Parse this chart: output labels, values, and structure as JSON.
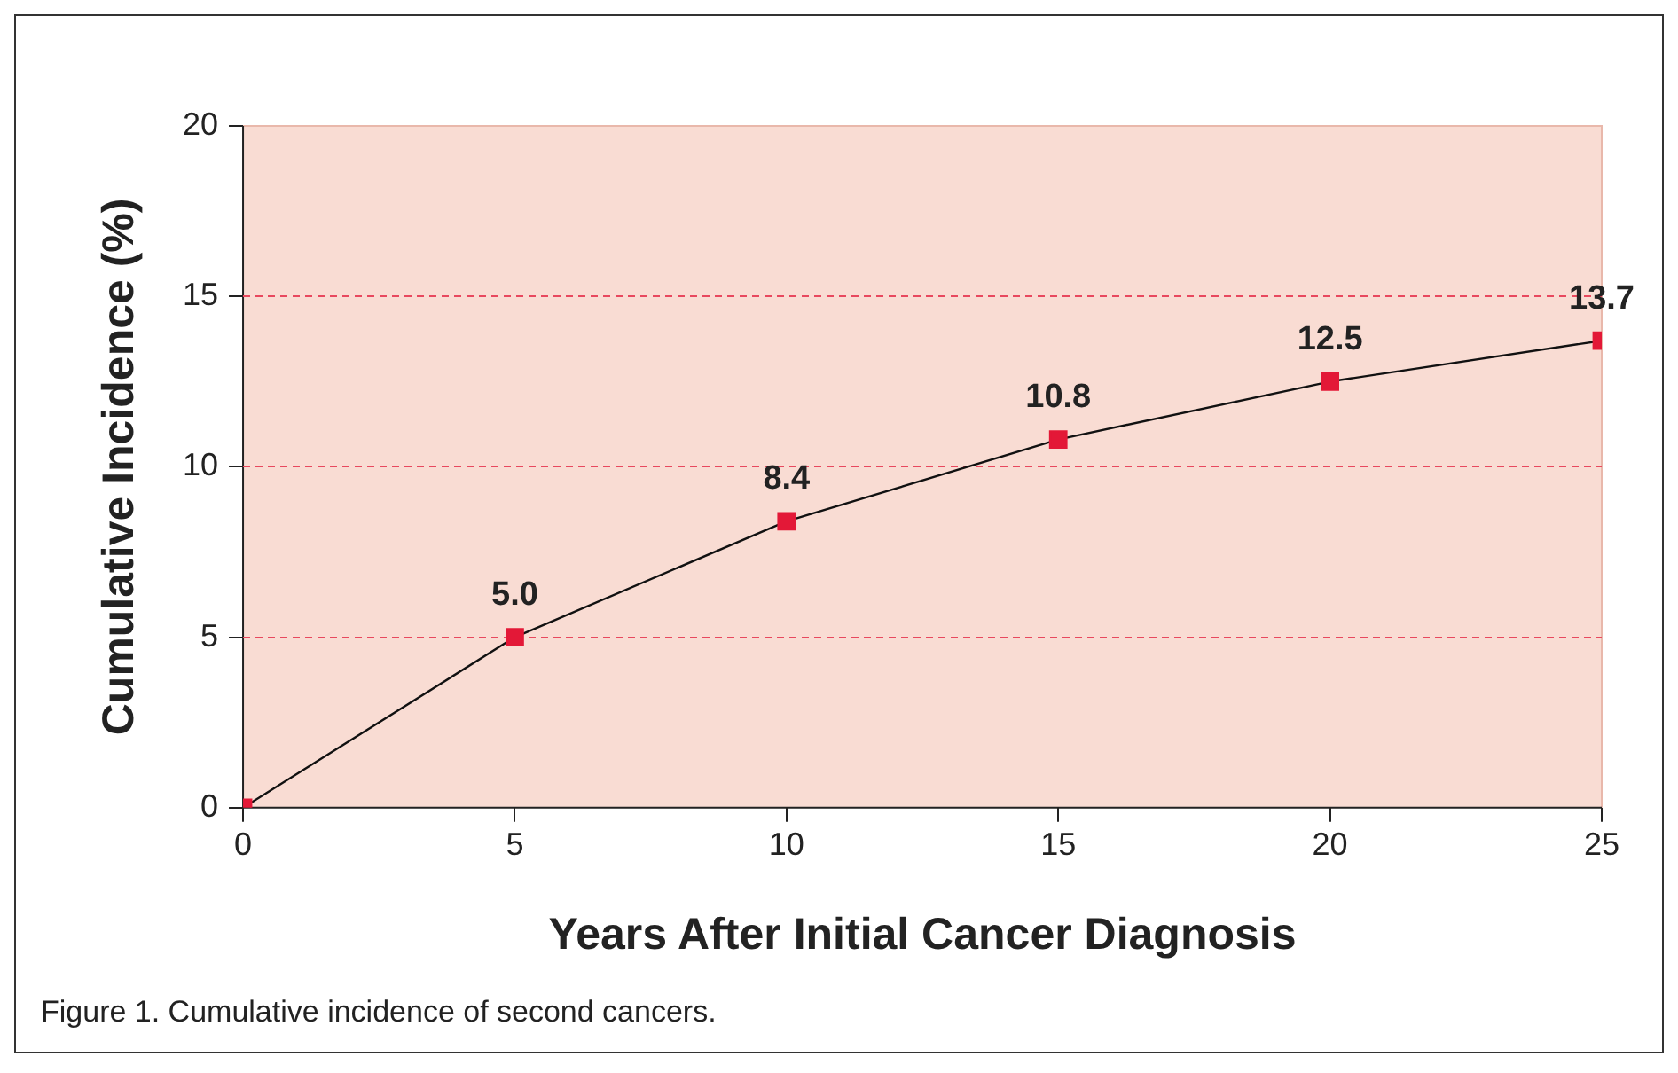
{
  "chart_data": {
    "type": "line",
    "xlabel": "Years After Initial Cancer Diagnosis",
    "ylabel": "Cumulative Incidence (%)",
    "x": [
      0,
      5,
      10,
      15,
      20,
      25
    ],
    "series": [
      {
        "color": "#e31837",
        "values": [
          0,
          5.0,
          8.4,
          10.8,
          12.5,
          13.7
        ],
        "value_labels": [
          null,
          "5.0",
          "8.4",
          "10.8",
          "12.5",
          "13.7"
        ]
      }
    ],
    "xlim": [
      0,
      25
    ],
    "xticks": [
      0,
      5,
      10,
      15,
      20,
      25
    ],
    "ylim": [
      0,
      20
    ],
    "yticks": [
      0,
      5,
      10,
      15,
      20
    ],
    "grid": "y",
    "marker": "square",
    "line_style": "solid",
    "legend": false,
    "annotations": [
      "Figure 1. Cumulative incidence of second cancers."
    ]
  }
}
